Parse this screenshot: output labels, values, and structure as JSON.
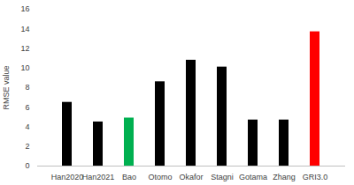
{
  "chart_data": {
    "type": "bar",
    "y_label": "RMSE value",
    "categories": [
      "Han2020",
      "Han2021",
      "Bao",
      "Otomo",
      "Okafor",
      "Stagni",
      "Gotama",
      "Zhang",
      "GRI3.0"
    ],
    "values": [
      6.5,
      4.5,
      4.9,
      8.6,
      10.8,
      10.1,
      4.7,
      4.7,
      13.7
    ],
    "colors": [
      "#000000",
      "#000000",
      "#00b050",
      "#000000",
      "#000000",
      "#000000",
      "#000000",
      "#000000",
      "#ff0000"
    ],
    "ylim": [
      0,
      16
    ],
    "yticks": [
      0,
      2,
      4,
      6,
      8,
      10,
      12,
      14,
      16
    ],
    "grid": false
  }
}
